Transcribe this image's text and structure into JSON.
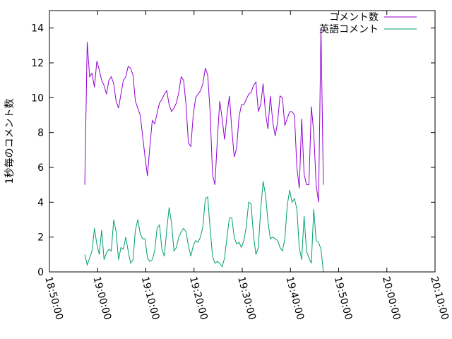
{
  "chart_data": {
    "type": "line",
    "title": "",
    "xlabel": "",
    "ylabel": "1秒毎のコメント数",
    "xlim": [
      "18:50:00",
      "20:10:00"
    ],
    "ylim": [
      0,
      15
    ],
    "xticks": [
      "18:50:00",
      "19:00:00",
      "19:10:00",
      "19:20:00",
      "19:30:00",
      "19:40:00",
      "19:50:00",
      "20:00:00",
      "20:10:00"
    ],
    "yticks": [
      "0",
      "2",
      "4",
      "6",
      "8",
      "10",
      "12",
      "14"
    ],
    "legend": "top-right",
    "grid": false,
    "series": [
      {
        "name": "コメント数",
        "color": "#9400d3",
        "points": [
          [
            "18:57:20",
            5.0
          ],
          [
            "18:57:50",
            13.2
          ],
          [
            "18:58:20",
            11.2
          ],
          [
            "18:58:50",
            11.4
          ],
          [
            "18:59:20",
            10.6
          ],
          [
            "18:59:50",
            12.1
          ],
          [
            "19:00:20",
            11.6
          ],
          [
            "19:00:50",
            11.0
          ],
          [
            "19:01:20",
            10.7
          ],
          [
            "19:01:50",
            10.2
          ],
          [
            "19:02:20",
            11.0
          ],
          [
            "19:02:50",
            11.2
          ],
          [
            "19:03:20",
            10.8
          ],
          [
            "19:03:50",
            9.8
          ],
          [
            "19:04:20",
            9.4
          ],
          [
            "19:04:50",
            10.2
          ],
          [
            "19:05:20",
            11.0
          ],
          [
            "19:05:50",
            11.2
          ],
          [
            "19:06:20",
            11.8
          ],
          [
            "19:06:50",
            11.7
          ],
          [
            "19:07:20",
            11.3
          ],
          [
            "19:07:50",
            9.8
          ],
          [
            "19:08:20",
            9.4
          ],
          [
            "19:08:50",
            9.0
          ],
          [
            "19:09:20",
            7.8
          ],
          [
            "19:09:50",
            6.6
          ],
          [
            "19:10:20",
            5.5
          ],
          [
            "19:10:50",
            7.2
          ],
          [
            "19:11:20",
            8.7
          ],
          [
            "19:11:50",
            8.5
          ],
          [
            "19:12:20",
            9.1
          ],
          [
            "19:12:50",
            9.7
          ],
          [
            "19:13:20",
            9.9
          ],
          [
            "19:13:50",
            10.2
          ],
          [
            "19:14:20",
            10.4
          ],
          [
            "19:14:50",
            9.6
          ],
          [
            "19:15:20",
            9.2
          ],
          [
            "19:15:50",
            9.4
          ],
          [
            "19:16:20",
            9.7
          ],
          [
            "19:16:50",
            10.3
          ],
          [
            "19:17:20",
            11.2
          ],
          [
            "19:17:50",
            11.0
          ],
          [
            "19:18:20",
            9.6
          ],
          [
            "19:18:50",
            7.4
          ],
          [
            "19:19:20",
            7.2
          ],
          [
            "19:19:50",
            9.0
          ],
          [
            "19:20:20",
            10.0
          ],
          [
            "19:20:50",
            10.2
          ],
          [
            "19:21:20",
            10.4
          ],
          [
            "19:21:50",
            10.8
          ],
          [
            "19:22:20",
            11.7
          ],
          [
            "19:22:50",
            11.3
          ],
          [
            "19:23:20",
            9.2
          ],
          [
            "19:23:50",
            5.6
          ],
          [
            "19:24:20",
            5.0
          ],
          [
            "19:24:50",
            7.6
          ],
          [
            "19:25:20",
            9.8
          ],
          [
            "19:25:50",
            8.8
          ],
          [
            "19:26:20",
            7.6
          ],
          [
            "19:26:50",
            9.0
          ],
          [
            "19:27:20",
            10.1
          ],
          [
            "19:27:50",
            8.2
          ],
          [
            "19:28:20",
            6.6
          ],
          [
            "19:28:50",
            7.1
          ],
          [
            "19:29:20",
            8.9
          ],
          [
            "19:29:50",
            9.6
          ],
          [
            "19:30:20",
            9.6
          ],
          [
            "19:30:50",
            9.9
          ],
          [
            "19:31:20",
            10.2
          ],
          [
            "19:31:50",
            10.3
          ],
          [
            "19:32:20",
            10.7
          ],
          [
            "19:32:50",
            10.9
          ],
          [
            "19:33:20",
            9.2
          ],
          [
            "19:33:50",
            9.6
          ],
          [
            "19:34:20",
            10.8
          ],
          [
            "19:34:50",
            9.1
          ],
          [
            "19:35:20",
            8.2
          ],
          [
            "19:35:50",
            10.1
          ],
          [
            "19:36:20",
            8.6
          ],
          [
            "19:36:50",
            7.8
          ],
          [
            "19:37:20",
            8.6
          ],
          [
            "19:37:50",
            10.1
          ],
          [
            "19:38:20",
            10.0
          ],
          [
            "19:38:50",
            8.4
          ],
          [
            "19:39:20",
            8.8
          ],
          [
            "19:39:50",
            9.2
          ],
          [
            "19:40:20",
            9.2
          ],
          [
            "19:40:50",
            9.0
          ],
          [
            "19:41:20",
            6.0
          ],
          [
            "19:41:50",
            4.8
          ],
          [
            "19:42:20",
            8.8
          ],
          [
            "19:42:50",
            5.6
          ],
          [
            "19:43:20",
            5.0
          ],
          [
            "19:43:50",
            5.0
          ],
          [
            "19:44:20",
            9.5
          ],
          [
            "19:44:50",
            8.0
          ],
          [
            "19:45:20",
            5.0
          ],
          [
            "19:45:50",
            4.0
          ],
          [
            "19:46:20",
            14.0
          ],
          [
            "19:46:50",
            5.0
          ]
        ]
      },
      {
        "name": "英語コメント",
        "color": "#009e73",
        "points": [
          [
            "18:57:20",
            1.0
          ],
          [
            "18:57:50",
            0.4
          ],
          [
            "18:58:20",
            0.8
          ],
          [
            "18:58:50",
            1.2
          ],
          [
            "18:59:20",
            2.5
          ],
          [
            "18:59:50",
            1.6
          ],
          [
            "19:00:20",
            1.0
          ],
          [
            "19:00:50",
            2.4
          ],
          [
            "19:01:20",
            0.7
          ],
          [
            "19:01:50",
            1.1
          ],
          [
            "19:02:20",
            1.3
          ],
          [
            "19:02:50",
            1.2
          ],
          [
            "19:03:20",
            3.0
          ],
          [
            "19:03:50",
            2.3
          ],
          [
            "19:04:20",
            0.7
          ],
          [
            "19:04:50",
            1.4
          ],
          [
            "19:05:20",
            1.3
          ],
          [
            "19:05:50",
            2.0
          ],
          [
            "19:06:20",
            1.2
          ],
          [
            "19:06:50",
            0.5
          ],
          [
            "19:07:20",
            0.7
          ],
          [
            "19:07:50",
            2.4
          ],
          [
            "19:08:20",
            3.0
          ],
          [
            "19:08:50",
            2.2
          ],
          [
            "19:09:20",
            1.9
          ],
          [
            "19:09:50",
            1.9
          ],
          [
            "19:10:20",
            0.8
          ],
          [
            "19:10:50",
            0.6
          ],
          [
            "19:11:20",
            0.7
          ],
          [
            "19:11:50",
            1.2
          ],
          [
            "19:12:20",
            2.5
          ],
          [
            "19:12:50",
            2.7
          ],
          [
            "19:13:20",
            1.3
          ],
          [
            "19:13:50",
            0.9
          ],
          [
            "19:14:20",
            2.4
          ],
          [
            "19:14:50",
            3.7
          ],
          [
            "19:15:20",
            2.8
          ],
          [
            "19:15:50",
            1.2
          ],
          [
            "19:16:20",
            1.4
          ],
          [
            "19:16:50",
            2.0
          ],
          [
            "19:17:20",
            2.3
          ],
          [
            "19:17:50",
            2.5
          ],
          [
            "19:18:20",
            2.3
          ],
          [
            "19:18:50",
            1.5
          ],
          [
            "19:19:20",
            0.9
          ],
          [
            "19:19:50",
            1.5
          ],
          [
            "19:20:20",
            1.8
          ],
          [
            "19:20:50",
            1.7
          ],
          [
            "19:21:20",
            2.0
          ],
          [
            "19:21:50",
            2.6
          ],
          [
            "19:22:20",
            4.2
          ],
          [
            "19:22:50",
            4.3
          ],
          [
            "19:23:20",
            2.5
          ],
          [
            "19:23:50",
            0.9
          ],
          [
            "19:24:20",
            0.5
          ],
          [
            "19:24:50",
            0.6
          ],
          [
            "19:25:20",
            0.5
          ],
          [
            "19:25:50",
            0.3
          ],
          [
            "19:26:20",
            0.8
          ],
          [
            "19:26:50",
            2.0
          ],
          [
            "19:27:20",
            3.1
          ],
          [
            "19:27:50",
            3.1
          ],
          [
            "19:28:20",
            2.0
          ],
          [
            "19:28:50",
            1.6
          ],
          [
            "19:29:20",
            1.7
          ],
          [
            "19:29:50",
            1.4
          ],
          [
            "19:30:20",
            1.8
          ],
          [
            "19:30:50",
            2.6
          ],
          [
            "19:31:20",
            4.0
          ],
          [
            "19:31:50",
            3.9
          ],
          [
            "19:32:20",
            2.1
          ],
          [
            "19:32:50",
            1.0
          ],
          [
            "19:33:20",
            1.4
          ],
          [
            "19:33:50",
            3.6
          ],
          [
            "19:34:20",
            5.2
          ],
          [
            "19:34:50",
            4.4
          ],
          [
            "19:35:20",
            2.9
          ],
          [
            "19:35:50",
            1.9
          ],
          [
            "19:36:20",
            2.0
          ],
          [
            "19:36:50",
            1.9
          ],
          [
            "19:37:20",
            1.8
          ],
          [
            "19:37:50",
            1.4
          ],
          [
            "19:38:20",
            1.2
          ],
          [
            "19:38:50",
            1.9
          ],
          [
            "19:39:20",
            3.8
          ],
          [
            "19:39:50",
            4.7
          ],
          [
            "19:40:20",
            4.0
          ],
          [
            "19:40:50",
            4.2
          ],
          [
            "19:41:20",
            3.6
          ],
          [
            "19:41:50",
            1.4
          ],
          [
            "19:42:20",
            0.7
          ],
          [
            "19:42:50",
            3.2
          ],
          [
            "19:43:20",
            1.2
          ],
          [
            "19:43:50",
            0.8
          ],
          [
            "19:44:20",
            0.5
          ],
          [
            "19:44:50",
            3.6
          ],
          [
            "19:45:20",
            1.8
          ],
          [
            "19:45:50",
            1.7
          ],
          [
            "19:46:20",
            1.3
          ],
          [
            "19:46:50",
            0.0
          ]
        ]
      }
    ]
  }
}
